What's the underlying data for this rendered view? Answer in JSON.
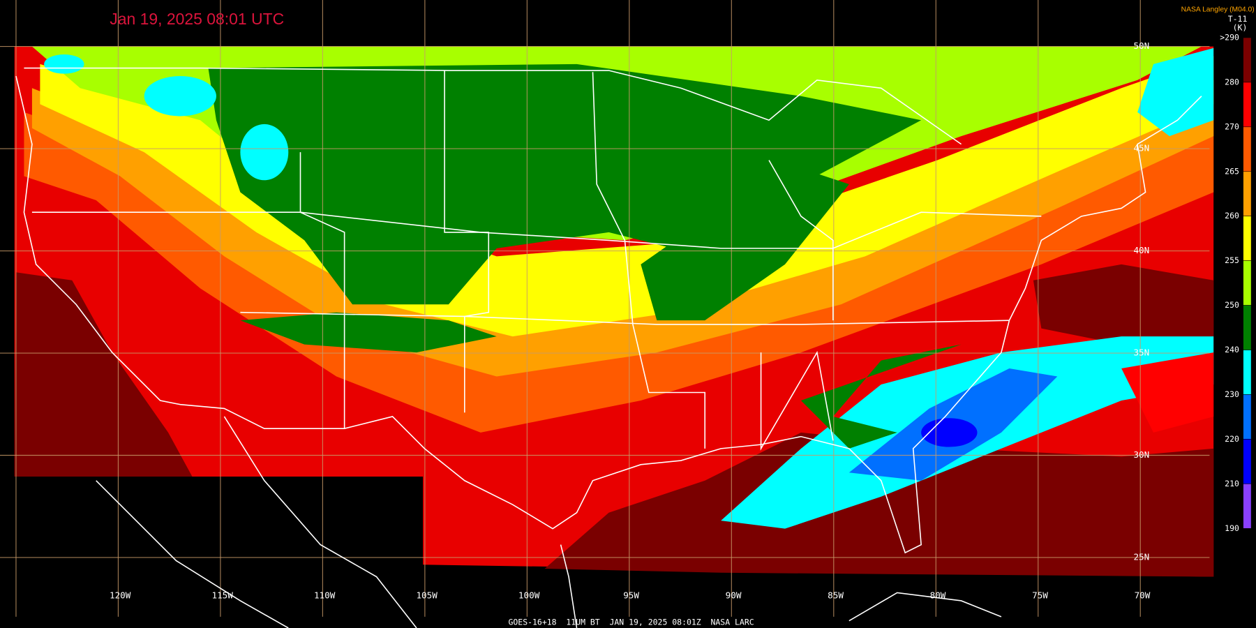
{
  "header": {
    "title": "Jan 19, 2025 08:01 UTC",
    "credit": "NASA Langley (M04.0)"
  },
  "legend": {
    "title": "T-11",
    "unit": "(K)",
    "labels": [
      ">290",
      "280",
      "270",
      "265",
      "260",
      "255",
      "250",
      "240",
      "230",
      "220",
      "210",
      "190"
    ],
    "colors": [
      "#7a0000",
      "#ff0000",
      "#ff5a00",
      "#ffa000",
      "#ffff00",
      "#a8ff00",
      "#008000",
      "#00ffff",
      "#0070ff",
      "#0000ff",
      "#8a40ff"
    ]
  },
  "map": {
    "longitude_labels": [
      "120W",
      "115W",
      "110W",
      "105W",
      "100W",
      "95W",
      "90W",
      "85W",
      "80W",
      "75W",
      "70W"
    ],
    "latitude_labels": [
      "50N",
      "45N",
      "40N",
      "35N",
      "30N",
      "25N"
    ]
  },
  "footer": {
    "text": "GOES-16+18  11UM BT  JAN 19, 2025 08:01Z  NASA LARC"
  }
}
